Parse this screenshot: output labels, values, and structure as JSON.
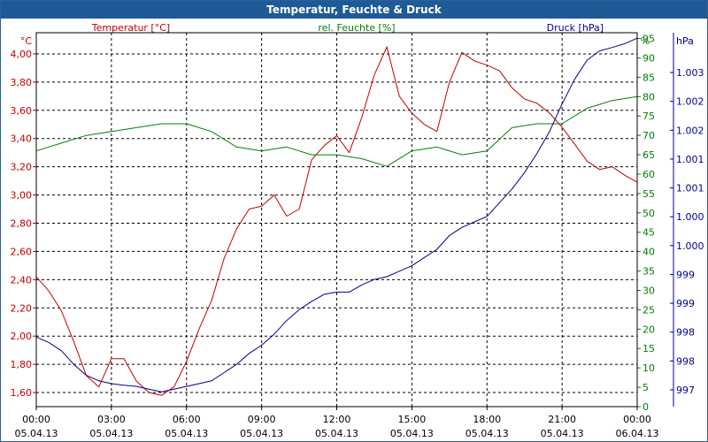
{
  "title": "Temperatur, Feuchte & Druck",
  "chart_data": {
    "type": "line",
    "title": "Temperatur, Feuchte & Druck",
    "grid": true,
    "x": {
      "unit": "hours",
      "range": [
        0,
        24
      ],
      "ticks": [
        {
          "h": 0,
          "time": "00:00",
          "date": "05.04.13"
        },
        {
          "h": 3,
          "time": "03:00",
          "date": "05.04.13"
        },
        {
          "h": 6,
          "time": "06:00",
          "date": "05.04.13"
        },
        {
          "h": 9,
          "time": "09:00",
          "date": "05.04.13"
        },
        {
          "h": 12,
          "time": "12:00",
          "date": "05.04.13"
        },
        {
          "h": 15,
          "time": "15:00",
          "date": "05.04.13"
        },
        {
          "h": 18,
          "time": "18:00",
          "date": "05.04.13"
        },
        {
          "h": 21,
          "time": "21:00",
          "date": "05.04.13"
        },
        {
          "h": 24,
          "time": "00:00",
          "date": "06.04.13"
        }
      ]
    },
    "axes": {
      "temperature": {
        "label": "Temperatur [°C]",
        "unit": "°C",
        "color": "#c00000",
        "range": [
          1.5,
          4.15
        ],
        "ticks": [
          "1,60",
          "1,80",
          "2,00",
          "2,20",
          "2,40",
          "2,60",
          "2,80",
          "3,00",
          "3,20",
          "3,40",
          "3,60",
          "3,80",
          "4,00"
        ]
      },
      "humidity": {
        "label": "rel. Feuchte [%]",
        "unit": "%",
        "color": "#008000",
        "range": [
          0,
          96.5
        ],
        "ticks": [
          "0",
          "5",
          "10",
          "15",
          "20",
          "25",
          "30",
          "35",
          "40",
          "45",
          "50",
          "55",
          "60",
          "65",
          "70",
          "75",
          "80",
          "85",
          "90",
          "95"
        ]
      },
      "pressure": {
        "label": "Druck [hPa]",
        "unit": "hPa",
        "color": "#00008b",
        "range": [
          996.73,
          1003.55
        ],
        "tick_labels": [
          "997",
          "998",
          "998",
          "999",
          "999",
          "1.000",
          "1.000",
          "1.001",
          "1.001",
          "1.002",
          "1.002",
          "1.003"
        ]
      }
    },
    "series": [
      {
        "name": "Temperatur [°C]",
        "axis": "temperature",
        "color": "#c00000",
        "x": [
          0,
          0.5,
          1,
          1.5,
          2,
          2.5,
          3,
          3.5,
          4,
          4.5,
          5,
          5.5,
          6,
          6.5,
          7,
          7.5,
          8,
          8.5,
          9,
          9.5,
          10,
          10.5,
          11,
          11.5,
          12,
          12.5,
          13,
          13.5,
          14,
          14.5,
          15,
          15.5,
          16,
          16.5,
          17,
          17.5,
          18,
          18.5,
          19,
          19.5,
          20,
          20.5,
          21,
          21.5,
          22,
          22.5,
          23,
          23.5,
          24
        ],
        "values": [
          2.42,
          2.32,
          2.18,
          1.96,
          1.72,
          1.64,
          1.84,
          1.84,
          1.68,
          1.6,
          1.58,
          1.64,
          1.82,
          2.05,
          2.25,
          2.55,
          2.76,
          2.9,
          2.92,
          3.0,
          2.85,
          2.9,
          3.25,
          3.35,
          3.42,
          3.3,
          3.55,
          3.85,
          4.05,
          3.7,
          3.58,
          3.5,
          3.45,
          3.8,
          4.01,
          3.95,
          3.92,
          3.88,
          3.76,
          3.68,
          3.65,
          3.58,
          3.48,
          3.36,
          3.24,
          3.18,
          3.2,
          3.14,
          3.09
        ]
      },
      {
        "name": "rel. Feuchte [%]",
        "axis": "humidity",
        "color": "#008000",
        "x": [
          0,
          1,
          2,
          3,
          4,
          5,
          6,
          7,
          8,
          9,
          10,
          11,
          12,
          13,
          14,
          15,
          16,
          17,
          18,
          19,
          20,
          21,
          22,
          23,
          24
        ],
        "values": [
          66,
          68,
          70,
          71,
          72,
          73,
          73,
          71,
          67,
          66,
          67,
          65,
          65,
          64,
          62,
          66,
          67,
          65,
          66,
          72,
          73,
          73,
          77,
          79,
          80
        ]
      },
      {
        "name": "Druck [hPa]",
        "axis": "pressure",
        "color": "#00008b",
        "x": [
          0,
          0.5,
          1,
          1.5,
          2,
          2.5,
          3,
          3.5,
          4,
          4.5,
          5,
          5.5,
          6,
          6.5,
          7,
          7.5,
          8,
          8.5,
          9,
          9.5,
          10,
          10.5,
          11,
          11.5,
          12,
          12.5,
          13,
          13.5,
          14,
          14.5,
          15,
          15.5,
          16,
          16.5,
          17,
          17.5,
          18,
          18.5,
          19,
          19.5,
          20,
          20.5,
          21,
          21.5,
          22,
          22.5,
          23,
          23.5,
          24
        ],
        "values": [
          998.0,
          997.9,
          997.75,
          997.5,
          997.3,
          997.2,
          997.15,
          997.12,
          997.1,
          997.05,
          997.0,
          997.05,
          997.1,
          997.15,
          997.2,
          997.35,
          997.5,
          997.7,
          997.85,
          998.05,
          998.3,
          998.5,
          998.65,
          998.78,
          998.82,
          998.82,
          998.95,
          999.05,
          999.1,
          999.2,
          999.3,
          999.45,
          999.6,
          999.85,
          1000.0,
          1000.1,
          1000.2,
          1000.45,
          1000.7,
          1001.0,
          1001.35,
          1001.75,
          1002.25,
          1002.7,
          1003.05,
          1003.22,
          1003.28,
          1003.35,
          1003.45
        ]
      }
    ]
  }
}
